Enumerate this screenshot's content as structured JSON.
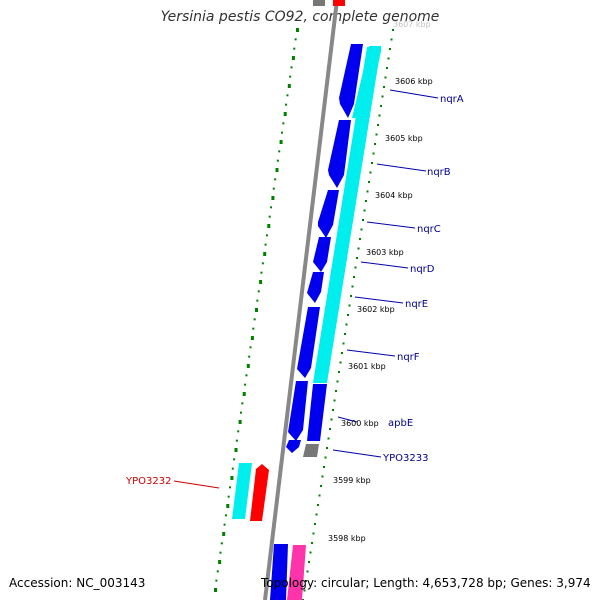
{
  "title": "Yersinia pestis CO92, complete genome",
  "accession": "Accession: NC_003143",
  "topology": "Topology: circular; Length: 4,653,728 bp; Genes: 3,974",
  "top_clip_label": "3607 kbp",
  "ticks": [
    "3606 kbp",
    "3605 kbp",
    "3604 kbp",
    "3603 kbp",
    "3602 kbp",
    "3601 kbp",
    "3600 kbp",
    "3599 kbp",
    "3598 kbp"
  ],
  "genes": [
    {
      "name": "nqrA",
      "color": "#00008b"
    },
    {
      "name": "nqrB",
      "color": "#00008b"
    },
    {
      "name": "nqrC",
      "color": "#00008b"
    },
    {
      "name": "nqrD",
      "color": "#00008b"
    },
    {
      "name": "nqrE",
      "color": "#00008b"
    },
    {
      "name": "nqrF",
      "color": "#00008b"
    },
    {
      "name": "apbE",
      "color": "#00008b"
    },
    {
      "name": "YPO3233",
      "color": "#00008b"
    },
    {
      "name": "YPO3232",
      "color": "#cc0000"
    }
  ],
  "colors": {
    "cds": "#0000ee",
    "gene": "#00eeee",
    "other": "#777777",
    "pseudo": "#ff0000",
    "rna": "#ff33aa",
    "backbone": "#888888",
    "dots": "#008000"
  }
}
